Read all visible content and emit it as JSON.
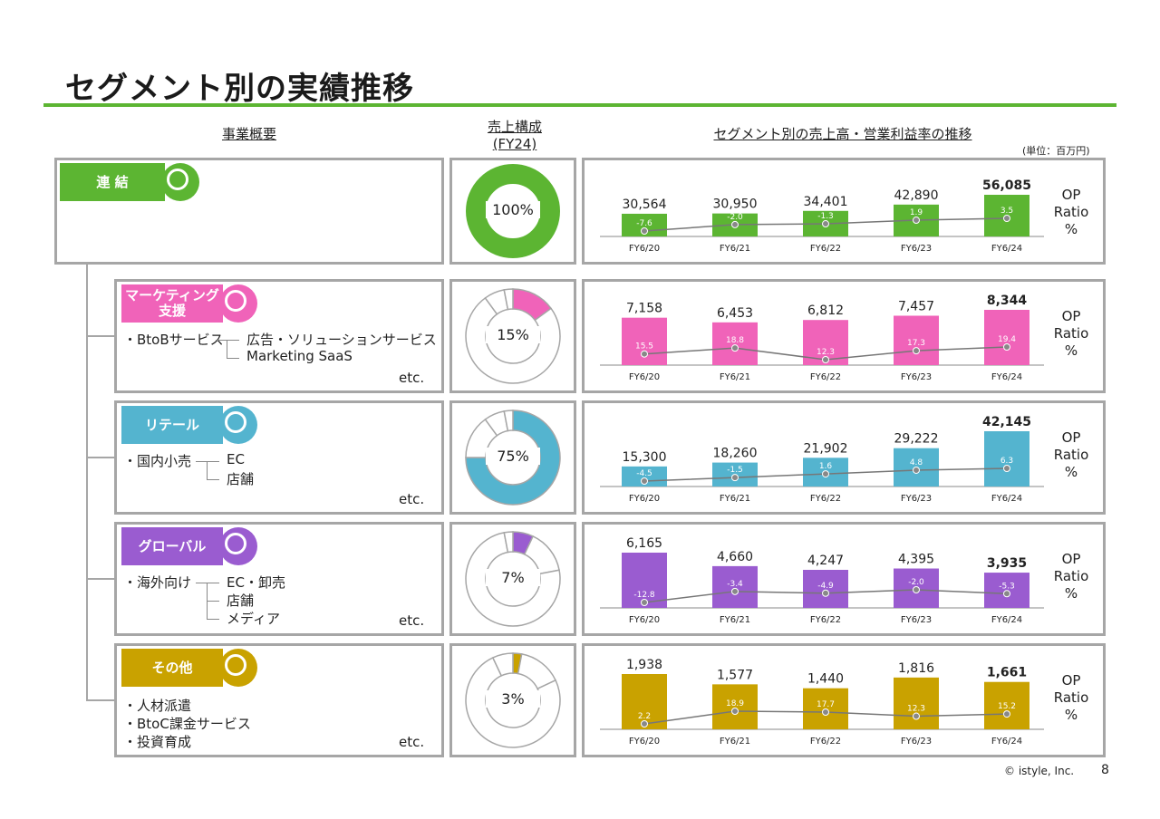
{
  "page_title": "セグメント別の実績推移",
  "headers": {
    "overview": "事業概要",
    "sales_mix_line1": "売上構成",
    "sales_mix_line2": "(FY24)",
    "trend": "セグメント別の売上高・営業利益率の推移",
    "unit": "(単位：百万円)"
  },
  "op_ratio": {
    "line1": "OP",
    "line2": "Ratio",
    "line3": "%"
  },
  "years": [
    "FY6/20",
    "FY6/21",
    "FY6/22",
    "FY6/23",
    "FY6/24"
  ],
  "footer": {
    "copyright": "© istyle, Inc.",
    "page": "8"
  },
  "segments": [
    {
      "name": "連 結",
      "color": "#5cb532",
      "desc": [],
      "etc": "",
      "share": {
        "label": "100%",
        "value": 100
      },
      "sales": [
        30564,
        30950,
        34401,
        42890,
        56085
      ],
      "sales_labels": [
        "30,564",
        "30,950",
        "34,401",
        "42,890",
        "56,085"
      ],
      "op": [
        -7.6,
        -2.0,
        -1.3,
        1.9,
        3.5
      ],
      "op_labels": [
        "-7.6",
        "-2.0",
        "-1.3",
        "1.9",
        "3.5"
      ]
    },
    {
      "name": "マーケティング\n支援",
      "color": "#f063b9",
      "desc": [
        {
          "text": "・BtoBサービス",
          "sub": [
            "広告・ソリューションサービス",
            "Marketing SaaS"
          ]
        }
      ],
      "etc": "etc.",
      "share": {
        "label": "15%",
        "value": 15
      },
      "sales": [
        7158,
        6453,
        6812,
        7457,
        8344
      ],
      "sales_labels": [
        "7,158",
        "6,453",
        "6,812",
        "7,457",
        "8,344"
      ],
      "op": [
        15.5,
        18.8,
        12.3,
        17.3,
        19.4
      ],
      "op_labels": [
        "15.5",
        "18.8",
        "12.3",
        "17.3",
        "19.4"
      ]
    },
    {
      "name": "リテール",
      "color": "#54b4cf",
      "desc": [
        {
          "text": "・国内小売",
          "sub": [
            "EC",
            "店舗"
          ]
        }
      ],
      "etc": "etc.",
      "share": {
        "label": "75%",
        "value": 75
      },
      "sales": [
        15300,
        18260,
        21902,
        29222,
        42145
      ],
      "sales_labels": [
        "15,300",
        "18,260",
        "21,902",
        "29,222",
        "42,145"
      ],
      "op": [
        -4.5,
        -1.5,
        1.6,
        4.8,
        6.3
      ],
      "op_labels": [
        "-4.5",
        "-1.5",
        "1.6",
        "4.8",
        "6.3"
      ]
    },
    {
      "name": "グローバル",
      "color": "#9a5cd0",
      "desc": [
        {
          "text": "・海外向け",
          "sub": [
            "EC・卸売",
            "店舗",
            "メディア"
          ]
        }
      ],
      "etc": "etc.",
      "share": {
        "label": "7%",
        "value": 7
      },
      "sales": [
        6165,
        4660,
        4247,
        4395,
        3935
      ],
      "sales_labels": [
        "6,165",
        "4,660",
        "4,247",
        "4,395",
        "3,935"
      ],
      "op": [
        -12.8,
        -3.4,
        -4.9,
        -2.0,
        -5.3
      ],
      "op_labels": [
        "-12.8",
        "-3.4",
        "-4.9",
        "-2.0",
        "-5.3"
      ]
    },
    {
      "name": "その他",
      "color": "#c9a200",
      "desc": [
        {
          "text": "・人材派遣",
          "sub": []
        },
        {
          "text": "・BtoC課金サービス",
          "sub": []
        },
        {
          "text": "・投資育成",
          "sub": []
        }
      ],
      "etc": "etc.",
      "share": {
        "label": "3%",
        "value": 3
      },
      "sales": [
        1938,
        1577,
        1440,
        1816,
        1661
      ],
      "sales_labels": [
        "1,938",
        "1,577",
        "1,440",
        "1,816",
        "1,661"
      ],
      "op": [
        2.2,
        18.9,
        17.7,
        12.3,
        15.2
      ],
      "op_labels": [
        "2.2",
        "18.9",
        "17.7",
        "12.3",
        "15.2"
      ]
    }
  ]
}
